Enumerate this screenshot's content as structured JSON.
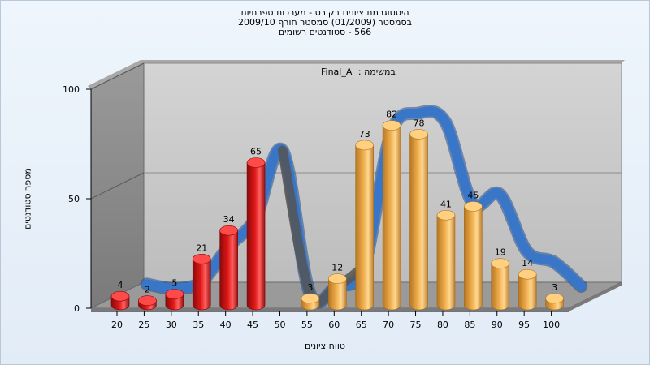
{
  "title_lines": [
    "היסטוגרמת ציונים בקורס - מערכות ספרתיות",
    "בסמסטר  (01/2009)  סמסטר חורף 2009/10",
    "566 - סטודנטים רשומים"
  ],
  "annotation": {
    "label": "במשימה :",
    "value": "Final_A"
  },
  "colors": {
    "fail_bar": "#e01818",
    "pass_bar": "#f0b050",
    "curve": "#3a76c8",
    "curve_back": "#555555",
    "wall": "#888888",
    "back_wall": "#c8c8c8",
    "floor": "#9a9a9a"
  },
  "chart_data": {
    "type": "bar",
    "title": "היסטוגרמת ציונים בקורס - מערכות ספרתיות",
    "xlabel": "טווח ציונים",
    "ylabel": "מספר סטודנטים",
    "ylim": [
      0,
      100
    ],
    "yticks": [
      0,
      50,
      100
    ],
    "grid": true,
    "categories": [
      "20",
      "25",
      "30",
      "35",
      "40",
      "45",
      "50",
      "55",
      "60",
      "65",
      "70",
      "75",
      "80",
      "85",
      "90",
      "95",
      "100"
    ],
    "bars": [
      {
        "grade": "20",
        "value": 4,
        "group": "fail"
      },
      {
        "grade": "25",
        "value": 2,
        "group": "fail"
      },
      {
        "grade": "30",
        "value": 5,
        "group": "fail"
      },
      {
        "grade": "35",
        "value": 21,
        "group": "fail"
      },
      {
        "grade": "40",
        "value": 34,
        "group": "fail"
      },
      {
        "grade": "45",
        "value": 65,
        "group": "fail"
      },
      {
        "grade": "55",
        "value": 3,
        "group": "pass"
      },
      {
        "grade": "60",
        "value": 12,
        "group": "pass"
      },
      {
        "grade": "65",
        "value": 73,
        "group": "pass"
      },
      {
        "grade": "70",
        "value": 82,
        "group": "pass"
      },
      {
        "grade": "75",
        "value": 78,
        "group": "pass"
      },
      {
        "grade": "80",
        "value": 41,
        "group": "pass"
      },
      {
        "grade": "85",
        "value": 45,
        "group": "pass"
      },
      {
        "grade": "90",
        "value": 19,
        "group": "pass"
      },
      {
        "grade": "95",
        "value": 14,
        "group": "pass"
      },
      {
        "grade": "100",
        "value": 3,
        "group": "pass"
      }
    ]
  }
}
